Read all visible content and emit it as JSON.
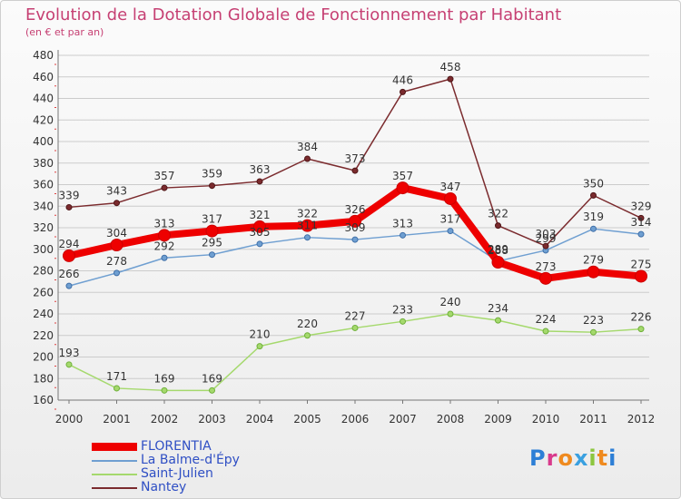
{
  "chart_data": {
    "type": "line",
    "title": "Evolution de la Dotation Globale de Fonctionnement par Habitant",
    "subtitle": "(en € et par an)",
    "xlabel": "",
    "ylabel": "",
    "ylim": [
      160,
      480
    ],
    "yticks": [
      160,
      180,
      200,
      220,
      240,
      260,
      280,
      300,
      320,
      340,
      360,
      380,
      400,
      420,
      440,
      460,
      480
    ],
    "x": [
      2000,
      2001,
      2002,
      2003,
      2004,
      2005,
      2006,
      2007,
      2008,
      2009,
      2010,
      2011,
      2012
    ],
    "grid": "horizontal",
    "legend_position": "bottom-left",
    "series": [
      {
        "name": "FLORENTIA",
        "color": "#ee0000",
        "values": [
          294,
          304,
          313,
          317,
          321,
          322,
          326,
          357,
          347,
          288,
          273,
          279,
          275
        ]
      },
      {
        "name": "La Balme-d'Épy",
        "color": "#6f9fd1",
        "values": [
          266,
          278,
          292,
          295,
          305,
          311,
          309,
          313,
          317,
          289,
          299,
          319,
          314
        ]
      },
      {
        "name": "Saint-Julien",
        "color": "#a5d96d",
        "values": [
          193,
          171,
          169,
          169,
          210,
          220,
          227,
          233,
          240,
          234,
          224,
          223,
          226
        ]
      },
      {
        "name": "Nantey",
        "color": "#7b2b2e",
        "values": [
          339,
          343,
          357,
          359,
          363,
          384,
          373,
          446,
          458,
          322,
          303,
          350,
          329
        ]
      }
    ]
  },
  "brand": {
    "letters": [
      "P",
      "r",
      "o",
      "x",
      "i",
      "t",
      "i"
    ],
    "colors": [
      "#2d7fd6",
      "#d93a8c",
      "#ef8a1f",
      "#3aa0e0",
      "#8cc63f",
      "#ef8a1f",
      "#2d7fd6"
    ]
  }
}
